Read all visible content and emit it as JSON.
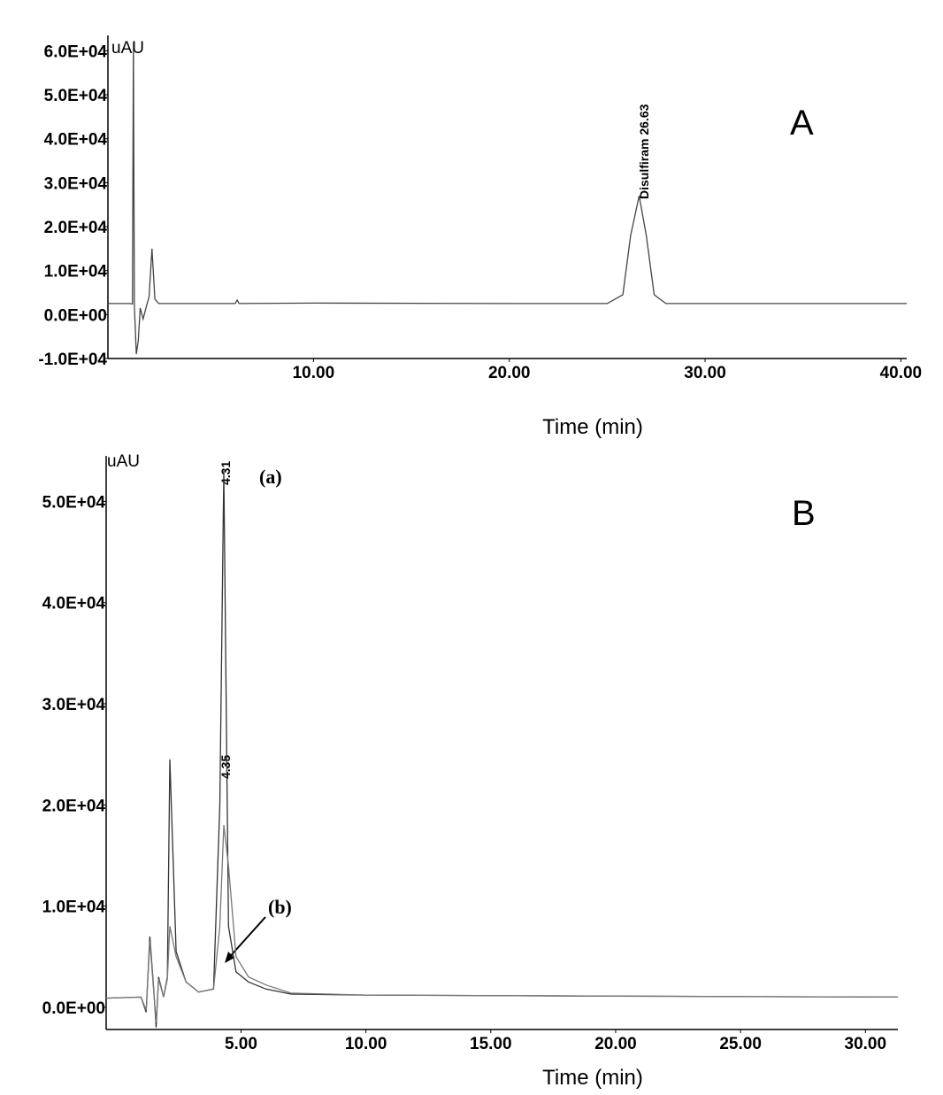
{
  "chart_data": [
    {
      "type": "line",
      "panel": "A",
      "y_unit": "uAU",
      "x_label": "Time (min)",
      "annotations": [
        "Disulfiram 26.63"
      ],
      "xlim": [
        -0.5,
        40.3
      ],
      "ylim": [
        -10000,
        63500
      ],
      "xticks": [
        {
          "value": 10,
          "label": "10.00"
        },
        {
          "value": 20,
          "label": "20.00"
        },
        {
          "value": 30,
          "label": "30.00"
        },
        {
          "value": 40,
          "label": "40.00"
        }
      ],
      "yticks": [
        {
          "value": -10000,
          "label": "-1.0E+04"
        },
        {
          "value": 0,
          "label": "0.0E+00"
        },
        {
          "value": 10000,
          "label": "1.0E+04"
        },
        {
          "value": 20000,
          "label": "2.0E+04"
        },
        {
          "value": 30000,
          "label": "3.0E+04"
        },
        {
          "value": 40000,
          "label": "4.0E+04"
        },
        {
          "value": 50000,
          "label": "5.0E+04"
        },
        {
          "value": 60000,
          "label": "6.0E+04"
        }
      ],
      "x": [
        -0.5,
        0.6,
        0.75,
        0.8,
        0.85,
        0.95,
        1.05,
        1.15,
        1.3,
        1.5,
        1.6,
        1.75,
        1.9,
        2.1,
        2.5,
        6,
        6.1,
        6.2,
        10,
        20,
        25,
        25.8,
        26.2,
        26.63,
        27.0,
        27.4,
        28,
        35,
        40.3
      ],
      "series": [
        {
          "color": "#444444",
          "values": [
            2500,
            2500,
            2400,
            62000,
            2000,
            -9000,
            -6000,
            1500,
            -1000,
            2500,
            4000,
            15000,
            3500,
            2500,
            2500,
            2500,
            3300,
            2500,
            2600,
            2500,
            2500,
            4500,
            18000,
            27000,
            18000,
            4500,
            2500,
            2500,
            2500
          ]
        }
      ]
    },
    {
      "type": "line",
      "panel": "B",
      "y_unit": "uAU",
      "x_label": "Time (min)",
      "annotations": [
        "4.31",
        "4.35"
      ],
      "xlim": [
        -0.4,
        31.3
      ],
      "ylim": [
        -2200,
        54500
      ],
      "xticks": [
        {
          "value": 5,
          "label": "5.00"
        },
        {
          "value": 10,
          "label": "10.00"
        },
        {
          "value": 15,
          "label": "15.00"
        },
        {
          "value": 20,
          "label": "20.00"
        },
        {
          "value": 25,
          "label": "25.00"
        },
        {
          "value": 30,
          "label": "30.00"
        }
      ],
      "yticks": [
        {
          "value": 0,
          "label": "0.0E+00"
        },
        {
          "value": 10000,
          "label": "1.0E+04"
        },
        {
          "value": 20000,
          "label": "2.0E+04"
        },
        {
          "value": 30000,
          "label": "3.0E+04"
        },
        {
          "value": 40000,
          "label": "4.0E+04"
        },
        {
          "value": 50000,
          "label": "5.0E+04"
        }
      ],
      "x": [
        -0.4,
        1.0,
        1.2,
        1.35,
        1.5,
        1.6,
        1.7,
        1.9,
        2.05,
        2.15,
        2.4,
        2.8,
        3.3,
        3.9,
        4.15,
        4.31,
        4.5,
        4.8,
        5.3,
        6.0,
        7,
        10,
        20,
        31.3
      ],
      "series": [
        {
          "name": "(a)",
          "color": "#333333",
          "values": [
            900,
            1000,
            -500,
            7000,
            2000,
            -2000,
            3000,
            1000,
            3000,
            24500,
            5500,
            2500,
            1500,
            1800,
            20000,
            53000,
            8000,
            3500,
            2500,
            1800,
            1300,
            1200,
            1100,
            1000
          ]
        },
        {
          "name": "(b)",
          "color": "#777777",
          "values": [
            900,
            1000,
            -300,
            6500,
            1800,
            -1500,
            2800,
            1000,
            2800,
            8000,
            5000,
            2500,
            1500,
            1800,
            8000,
            18000,
            14000,
            5000,
            3000,
            2200,
            1400,
            1200,
            1100,
            1000
          ]
        }
      ]
    }
  ]
}
